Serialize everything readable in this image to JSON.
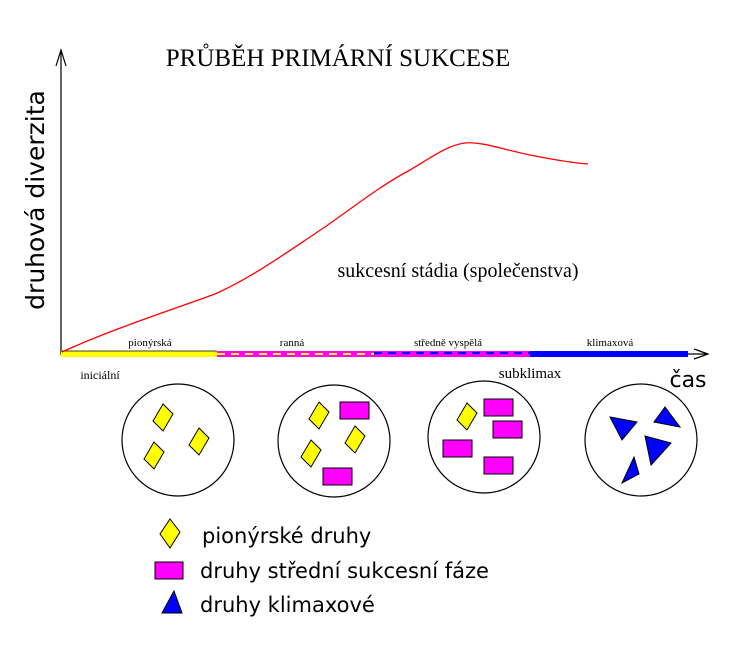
{
  "title": "PRŮBĚH PRIMÁRNÍ SUKCESE",
  "y_axis_label": "druhová diverzita",
  "x_axis_label": "čas",
  "curve_label": "sukcesní stádia (společenstva)",
  "stages": [
    {
      "label": "pionýrská",
      "color": "#ffff00"
    },
    {
      "label": "ranná",
      "color": "#ff00ff"
    },
    {
      "label": "středně vyspělá",
      "color": "#ff00ff"
    },
    {
      "label": "klimaxová",
      "color": "#0000ff"
    }
  ],
  "extra_labels": {
    "initial": "iniciální",
    "subclimax": "subklimax"
  },
  "communities": [
    {
      "stage": "iniciální",
      "species": [
        "pionýrské",
        "pionýrské",
        "pionýrské"
      ]
    },
    {
      "stage": "ranná",
      "species": [
        "pionýrské",
        "pionýrské",
        "pionýrské",
        "střední",
        "střední"
      ]
    },
    {
      "stage": "středně vyspělá",
      "species": [
        "pionýrské",
        "střední",
        "střední",
        "střední",
        "střední"
      ]
    },
    {
      "stage": "klimaxová",
      "species": [
        "klimaxové",
        "klimaxové",
        "klimaxové",
        "klimaxové"
      ]
    }
  ],
  "legend": [
    {
      "label": "pionýrské druhy",
      "shape": "diamond-icon",
      "color": "#ffff00"
    },
    {
      "label": "druhy střední sukcesní fáze",
      "shape": "rectangle-icon",
      "color": "#ff00ff"
    },
    {
      "label": "druhy klimaxové",
      "shape": "triangle-icon",
      "color": "#0000ff"
    }
  ]
}
